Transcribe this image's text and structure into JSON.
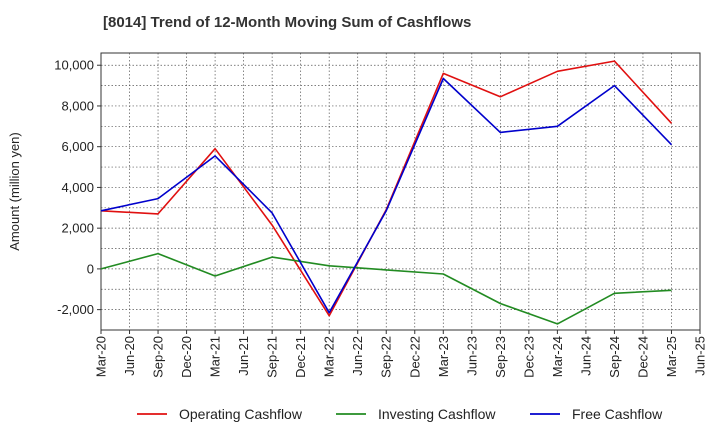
{
  "chart_data": {
    "type": "line",
    "title": "[8014]  Trend of 12-Month Moving Sum of Cashflows",
    "xlabel": "",
    "ylabel": "Amount (million yen)",
    "x_ticks": [
      "Mar-20",
      "Jun-20",
      "Sep-20",
      "Dec-20",
      "Mar-21",
      "Jun-21",
      "Sep-21",
      "Dec-21",
      "Mar-22",
      "Jun-22",
      "Sep-22",
      "Dec-22",
      "Mar-23",
      "Jun-23",
      "Sep-23",
      "Dec-23",
      "Mar-24",
      "Jun-24",
      "Sep-24",
      "Dec-24",
      "Mar-25",
      "Jun-25"
    ],
    "y_ticks": [
      -2000,
      0,
      2000,
      4000,
      6000,
      8000,
      10000
    ],
    "y_tick_labels": [
      "-2,000",
      "0",
      "2,000",
      "4,000",
      "6,000",
      "8,000",
      "10,000"
    ],
    "ylim": [
      -3000,
      10600
    ],
    "grid": true,
    "legend_position": "bottom",
    "series": [
      {
        "name": "Operating Cashflow",
        "color": "#e01010",
        "points": [
          {
            "x": "Mar-20",
            "y": 2850
          },
          {
            "x": "Sep-20",
            "y": 2700
          },
          {
            "x": "Mar-21",
            "y": 5900
          },
          {
            "x": "Sep-21",
            "y": 2150
          },
          {
            "x": "Mar-22",
            "y": -2300
          },
          {
            "x": "Sep-22",
            "y": 2900
          },
          {
            "x": "Mar-23",
            "y": 9600
          },
          {
            "x": "Sep-23",
            "y": 8450
          },
          {
            "x": "Mar-24",
            "y": 9700
          },
          {
            "x": "Sep-24",
            "y": 10200
          },
          {
            "x": "Mar-25",
            "y": 7150
          }
        ]
      },
      {
        "name": "Investing Cashflow",
        "color": "#228b22",
        "points": [
          {
            "x": "Mar-20",
            "y": 0
          },
          {
            "x": "Sep-20",
            "y": 750
          },
          {
            "x": "Mar-21",
            "y": -350
          },
          {
            "x": "Sep-21",
            "y": 580
          },
          {
            "x": "Mar-22",
            "y": 150
          },
          {
            "x": "Sep-22",
            "y": -50
          },
          {
            "x": "Mar-23",
            "y": -250
          },
          {
            "x": "Sep-23",
            "y": -1700
          },
          {
            "x": "Mar-24",
            "y": -2700
          },
          {
            "x": "Sep-24",
            "y": -1200
          },
          {
            "x": "Mar-25",
            "y": -1050
          }
        ]
      },
      {
        "name": "Free Cashflow",
        "color": "#0000cc",
        "points": [
          {
            "x": "Mar-20",
            "y": 2850
          },
          {
            "x": "Sep-20",
            "y": 3450
          },
          {
            "x": "Mar-21",
            "y": 5550
          },
          {
            "x": "Sep-21",
            "y": 2750
          },
          {
            "x": "Mar-22",
            "y": -2150
          },
          {
            "x": "Sep-22",
            "y": 2850
          },
          {
            "x": "Mar-23",
            "y": 9350
          },
          {
            "x": "Sep-23",
            "y": 6700
          },
          {
            "x": "Mar-24",
            "y": 7000
          },
          {
            "x": "Sep-24",
            "y": 9000
          },
          {
            "x": "Mar-25",
            "y": 6100
          }
        ]
      }
    ]
  }
}
